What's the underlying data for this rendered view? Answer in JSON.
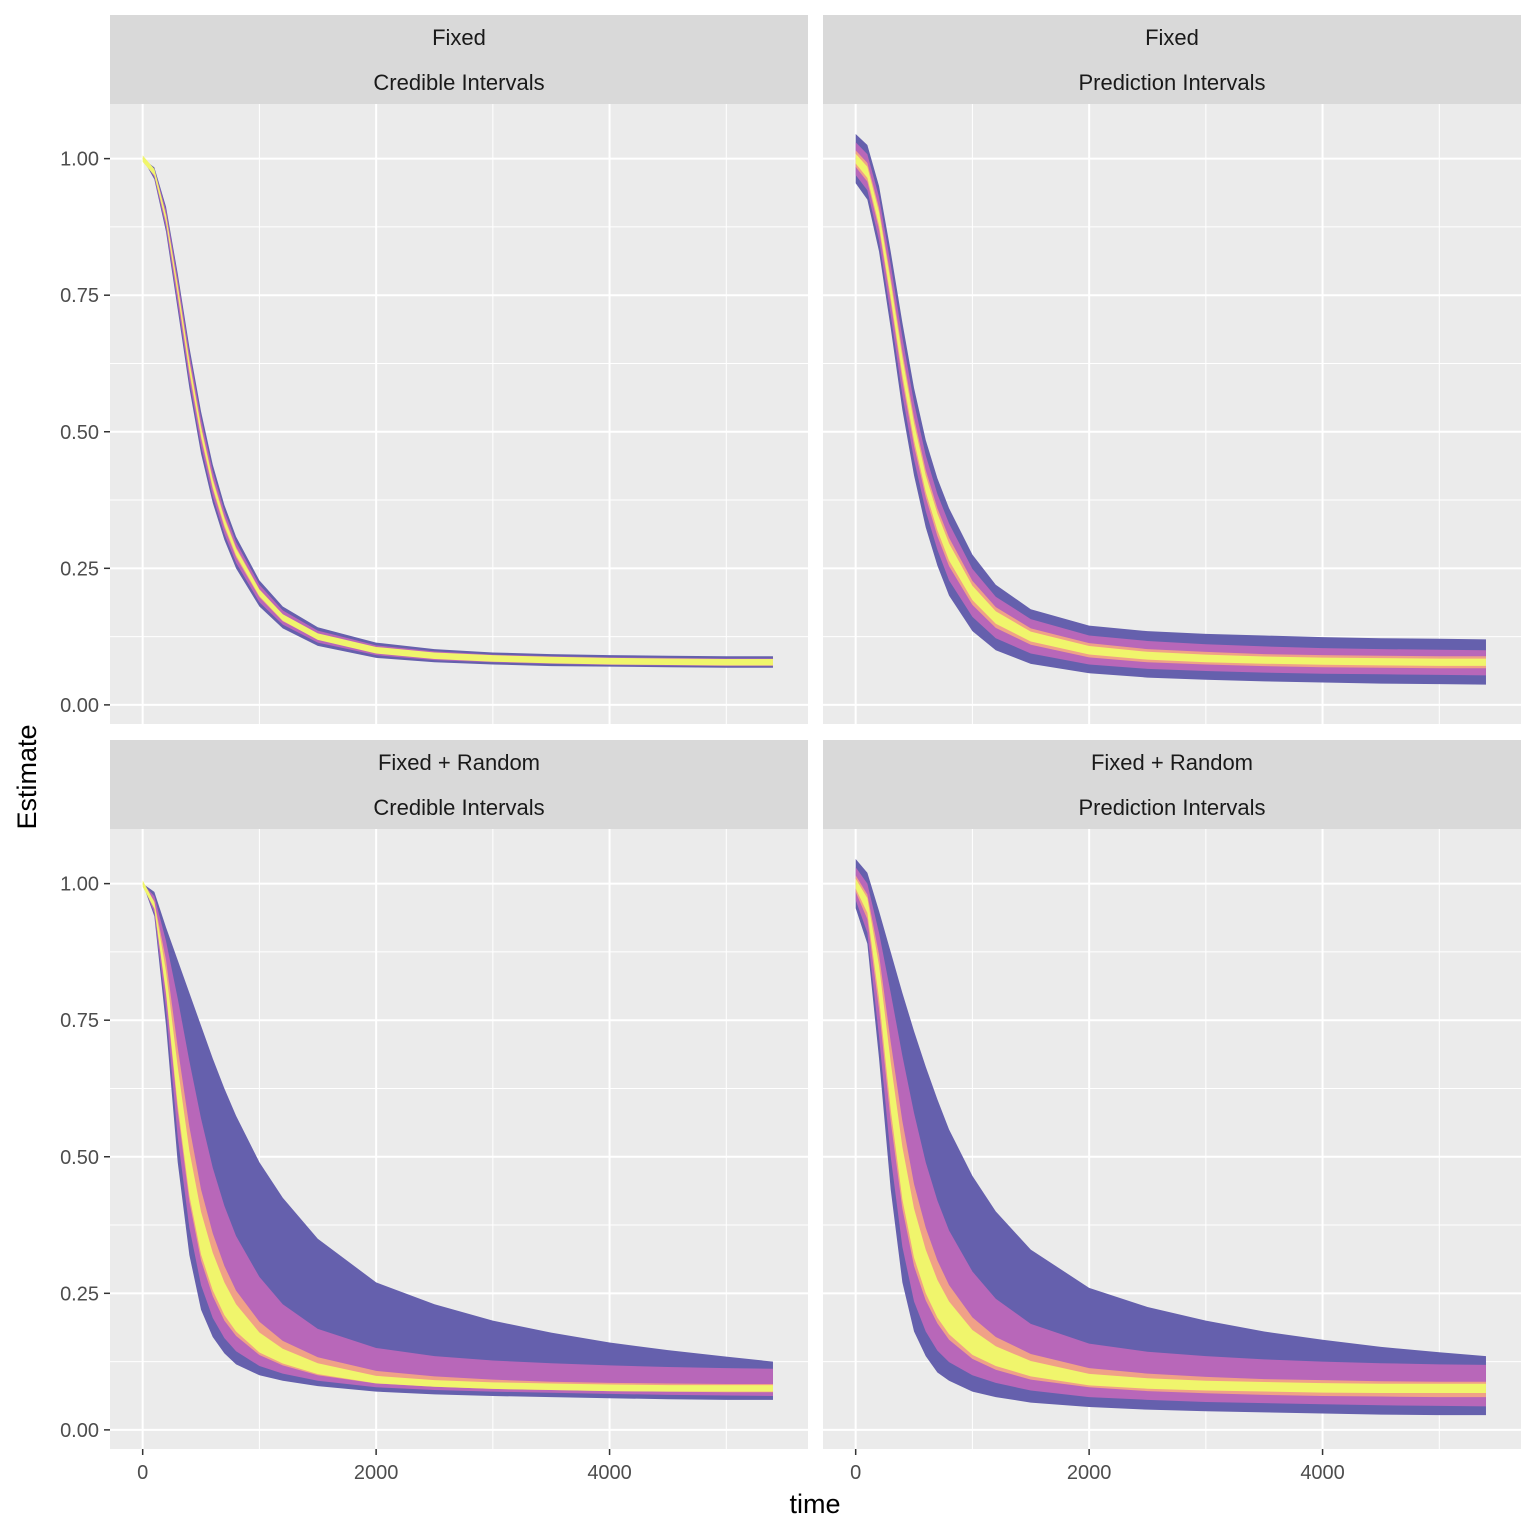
{
  "chart_data": {
    "type": "area",
    "xlabel": "time",
    "ylabel": "Estimate",
    "xlim": [
      -280,
      5700
    ],
    "ylim": [
      -0.035,
      1.1
    ],
    "x_ticks": [
      0,
      2000,
      4000
    ],
    "x_tick_labels": [
      "0",
      "2000",
      "4000"
    ],
    "y_ticks": [
      0,
      0.25,
      0.5,
      0.75,
      1.0
    ],
    "y_tick_labels": [
      "0.00",
      "0.25",
      "0.50",
      "0.75",
      "1.00"
    ],
    "grid": true,
    "band_colors": [
      "#6560ad",
      "#b867b9",
      "#f0a187",
      "#f0f56c"
    ],
    "panel_background": "#ebebeb",
    "strip_background": "#d9d9d9",
    "x": [
      0,
      100,
      200,
      300,
      400,
      500,
      600,
      700,
      800,
      1000,
      1200,
      1500,
      2000,
      2500,
      3000,
      3500,
      4000,
      4500,
      5000,
      5400
    ],
    "panels": [
      {
        "strip_top": "Fixed",
        "strip_bottom": "Credible Intervals",
        "median": [
          1.0,
          0.975,
          0.89,
          0.76,
          0.62,
          0.5,
          0.405,
          0.335,
          0.28,
          0.205,
          0.16,
          0.125,
          0.1,
          0.09,
          0.085,
          0.082,
          0.08,
          0.079,
          0.078,
          0.078
        ],
        "bands_low": [
          [
            1.0,
            0.962,
            0.866,
            0.724,
            0.58,
            0.46,
            0.37,
            0.302,
            0.25,
            0.18,
            0.14,
            0.108,
            0.086,
            0.078,
            0.074,
            0.071,
            0.07,
            0.069,
            0.068,
            0.068
          ],
          [
            1.0,
            0.966,
            0.874,
            0.736,
            0.594,
            0.474,
            0.382,
            0.313,
            0.26,
            0.188,
            0.147,
            0.114,
            0.091,
            0.082,
            0.078,
            0.075,
            0.073,
            0.072,
            0.071,
            0.071
          ],
          [
            1.0,
            0.97,
            0.882,
            0.748,
            0.606,
            0.487,
            0.394,
            0.324,
            0.27,
            0.197,
            0.153,
            0.12,
            0.095,
            0.086,
            0.081,
            0.078,
            0.076,
            0.075,
            0.075,
            0.075
          ]
        ],
        "bands_high": [
          [
            1.0,
            0.984,
            0.912,
            0.79,
            0.655,
            0.537,
            0.44,
            0.366,
            0.308,
            0.228,
            0.18,
            0.142,
            0.114,
            0.102,
            0.096,
            0.093,
            0.091,
            0.09,
            0.089,
            0.089
          ],
          [
            1.0,
            0.981,
            0.905,
            0.78,
            0.643,
            0.524,
            0.428,
            0.355,
            0.298,
            0.22,
            0.173,
            0.136,
            0.109,
            0.098,
            0.092,
            0.089,
            0.087,
            0.086,
            0.085,
            0.085
          ],
          [
            1.0,
            0.978,
            0.897,
            0.77,
            0.632,
            0.512,
            0.416,
            0.345,
            0.289,
            0.212,
            0.166,
            0.13,
            0.104,
            0.094,
            0.088,
            0.085,
            0.083,
            0.082,
            0.081,
            0.081
          ]
        ]
      },
      {
        "strip_top": "Fixed",
        "strip_bottom": "Prediction Intervals",
        "median": [
          1.0,
          0.975,
          0.89,
          0.76,
          0.62,
          0.5,
          0.405,
          0.335,
          0.28,
          0.205,
          0.16,
          0.125,
          0.1,
          0.09,
          0.085,
          0.082,
          0.08,
          0.079,
          0.078,
          0.078
        ],
        "bands_low": [
          [
            0.955,
            0.925,
            0.83,
            0.69,
            0.54,
            0.42,
            0.325,
            0.255,
            0.2,
            0.135,
            0.1,
            0.075,
            0.058,
            0.05,
            0.046,
            0.043,
            0.041,
            0.039,
            0.038,
            0.037
          ],
          [
            0.97,
            0.942,
            0.85,
            0.714,
            0.567,
            0.449,
            0.355,
            0.284,
            0.228,
            0.161,
            0.122,
            0.094,
            0.074,
            0.066,
            0.062,
            0.059,
            0.057,
            0.056,
            0.055,
            0.054
          ],
          [
            0.985,
            0.958,
            0.87,
            0.737,
            0.593,
            0.474,
            0.38,
            0.309,
            0.254,
            0.183,
            0.141,
            0.11,
            0.087,
            0.078,
            0.074,
            0.071,
            0.069,
            0.068,
            0.067,
            0.067
          ]
        ],
        "bands_high": [
          [
            1.045,
            1.025,
            0.95,
            0.83,
            0.7,
            0.58,
            0.485,
            0.415,
            0.36,
            0.275,
            0.22,
            0.175,
            0.145,
            0.135,
            0.13,
            0.127,
            0.124,
            0.122,
            0.121,
            0.12
          ],
          [
            1.03,
            1.008,
            0.93,
            0.806,
            0.673,
            0.553,
            0.457,
            0.386,
            0.332,
            0.249,
            0.198,
            0.157,
            0.127,
            0.117,
            0.111,
            0.107,
            0.104,
            0.102,
            0.101,
            0.1
          ],
          [
            1.015,
            0.992,
            0.91,
            0.783,
            0.647,
            0.526,
            0.43,
            0.36,
            0.306,
            0.227,
            0.179,
            0.14,
            0.113,
            0.102,
            0.097,
            0.093,
            0.091,
            0.09,
            0.089,
            0.089
          ]
        ]
      },
      {
        "strip_top": "Fixed + Random",
        "strip_bottom": "Credible Intervals",
        "median": [
          1.0,
          0.96,
          0.82,
          0.63,
          0.47,
          0.36,
          0.29,
          0.24,
          0.205,
          0.16,
          0.135,
          0.112,
          0.092,
          0.085,
          0.081,
          0.079,
          0.077,
          0.076,
          0.076,
          0.076
        ],
        "bands_low": [
          [
            1.0,
            0.94,
            0.74,
            0.49,
            0.32,
            0.22,
            0.17,
            0.14,
            0.12,
            0.1,
            0.09,
            0.08,
            0.07,
            0.065,
            0.062,
            0.06,
            0.058,
            0.056,
            0.055,
            0.055
          ],
          [
            1.0,
            0.946,
            0.77,
            0.536,
            0.37,
            0.265,
            0.205,
            0.168,
            0.144,
            0.117,
            0.103,
            0.09,
            0.078,
            0.073,
            0.07,
            0.068,
            0.066,
            0.064,
            0.063,
            0.062
          ],
          [
            1.0,
            0.954,
            0.796,
            0.584,
            0.418,
            0.31,
            0.245,
            0.2,
            0.172,
            0.137,
            0.118,
            0.1,
            0.085,
            0.079,
            0.075,
            0.073,
            0.071,
            0.07,
            0.069,
            0.069
          ]
        ],
        "bands_high": [
          [
            1.0,
            0.985,
            0.92,
            0.86,
            0.8,
            0.74,
            0.68,
            0.625,
            0.575,
            0.49,
            0.425,
            0.35,
            0.27,
            0.23,
            0.2,
            0.178,
            0.16,
            0.146,
            0.134,
            0.125
          ],
          [
            1.0,
            0.977,
            0.895,
            0.79,
            0.675,
            0.57,
            0.48,
            0.41,
            0.355,
            0.28,
            0.23,
            0.185,
            0.15,
            0.135,
            0.127,
            0.122,
            0.118,
            0.115,
            0.113,
            0.112
          ],
          [
            1.0,
            0.968,
            0.86,
            0.7,
            0.555,
            0.44,
            0.36,
            0.3,
            0.255,
            0.198,
            0.163,
            0.133,
            0.108,
            0.098,
            0.092,
            0.088,
            0.086,
            0.085,
            0.084,
            0.084
          ]
        ]
      },
      {
        "strip_top": "Fixed + Random",
        "strip_bottom": "Prediction Intervals",
        "median": [
          1.0,
          0.96,
          0.82,
          0.63,
          0.47,
          0.36,
          0.29,
          0.24,
          0.205,
          0.16,
          0.135,
          0.112,
          0.092,
          0.085,
          0.081,
          0.079,
          0.077,
          0.076,
          0.076,
          0.076
        ],
        "bands_low": [
          [
            0.955,
            0.89,
            0.68,
            0.44,
            0.27,
            0.18,
            0.135,
            0.105,
            0.09,
            0.07,
            0.06,
            0.05,
            0.042,
            0.037,
            0.034,
            0.032,
            0.03,
            0.028,
            0.027,
            0.027
          ],
          [
            0.97,
            0.91,
            0.72,
            0.5,
            0.335,
            0.235,
            0.18,
            0.145,
            0.124,
            0.1,
            0.086,
            0.072,
            0.06,
            0.055,
            0.051,
            0.049,
            0.047,
            0.045,
            0.044,
            0.043
          ],
          [
            0.985,
            0.935,
            0.77,
            0.565,
            0.405,
            0.3,
            0.237,
            0.195,
            0.165,
            0.13,
            0.11,
            0.092,
            0.078,
            0.071,
            0.067,
            0.064,
            0.062,
            0.061,
            0.06,
            0.06
          ]
        ],
        "bands_high": [
          [
            1.045,
            1.02,
            0.95,
            0.875,
            0.8,
            0.73,
            0.665,
            0.605,
            0.55,
            0.465,
            0.4,
            0.33,
            0.26,
            0.225,
            0.2,
            0.18,
            0.165,
            0.152,
            0.142,
            0.135
          ],
          [
            1.03,
            1.0,
            0.91,
            0.8,
            0.685,
            0.58,
            0.49,
            0.42,
            0.365,
            0.29,
            0.24,
            0.194,
            0.158,
            0.143,
            0.135,
            0.129,
            0.125,
            0.122,
            0.12,
            0.119
          ],
          [
            1.015,
            0.98,
            0.87,
            0.71,
            0.565,
            0.45,
            0.37,
            0.31,
            0.265,
            0.206,
            0.17,
            0.139,
            0.113,
            0.103,
            0.097,
            0.093,
            0.091,
            0.089,
            0.088,
            0.088
          ]
        ]
      }
    ]
  }
}
